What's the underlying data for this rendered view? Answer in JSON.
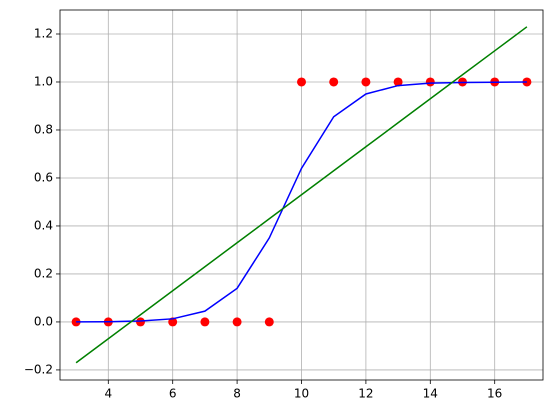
{
  "chart_data": {
    "type": "scatter",
    "x": [
      3,
      4,
      5,
      6,
      7,
      8,
      9,
      10,
      11,
      12,
      13,
      14,
      15,
      16,
      17
    ],
    "series": [
      {
        "type": "scatter",
        "color": "#ff0000",
        "values": [
          0,
          0,
          0,
          0,
          0,
          0,
          0,
          1,
          1,
          1,
          1,
          1,
          1,
          1,
          1
        ]
      },
      {
        "type": "line",
        "color": "#0000ff",
        "values": [
          0,
          0.001,
          0.004,
          0.013,
          0.045,
          0.14,
          0.35,
          0.64,
          0.855,
          0.95,
          0.985,
          0.995,
          0.998,
          0.999,
          1
        ]
      },
      {
        "type": "line",
        "color": "#008000",
        "values": [
          -0.17,
          -0.07,
          0.03,
          0.13,
          0.23,
          0.33,
          0.43,
          0.53,
          0.63,
          0.73,
          0.83,
          0.93,
          1.03,
          1.13,
          1.23
        ]
      }
    ],
    "xlim": [
      2.5,
      17.5
    ],
    "ylim": [
      -0.242,
      1.3
    ],
    "xticks": [
      4,
      6,
      8,
      10,
      12,
      14,
      16
    ],
    "yticks": [
      {
        "value": -0.2,
        "label": "−0.2"
      },
      {
        "value": 0,
        "label": "0.0"
      },
      0.2,
      0.4,
      0.6,
      0.8,
      {
        "value": 1,
        "label": "1.0"
      },
      1.2
    ],
    "grid": true
  }
}
